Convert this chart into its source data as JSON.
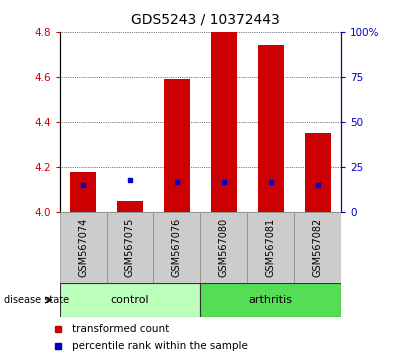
{
  "title": "GDS5243 / 10372443",
  "samples": [
    "GSM567074",
    "GSM567075",
    "GSM567076",
    "GSM567080",
    "GSM567081",
    "GSM567082"
  ],
  "groups": [
    "control",
    "control",
    "control",
    "arthritis",
    "arthritis",
    "arthritis"
  ],
  "red_values": [
    4.18,
    4.05,
    4.59,
    4.8,
    4.74,
    4.35
  ],
  "blue_percentiles": [
    15,
    18,
    17,
    17,
    17,
    15
  ],
  "ylim_left": [
    4.0,
    4.8
  ],
  "ylim_right": [
    0,
    100
  ],
  "yticks_left": [
    4.0,
    4.2,
    4.4,
    4.6,
    4.8
  ],
  "yticks_right": [
    0,
    25,
    50,
    75,
    100
  ],
  "bar_color": "#cc0000",
  "blue_color": "#0000cc",
  "control_color": "#bbffbb",
  "arthritis_color": "#55dd55",
  "sample_box_color": "#cccccc",
  "bar_width": 0.55,
  "legend_items": [
    "transformed count",
    "percentile rank within the sample"
  ],
  "group_label": "disease state",
  "title_fontsize": 10,
  "tick_fontsize": 7.5,
  "label_fontsize": 7,
  "group_fontsize": 8
}
